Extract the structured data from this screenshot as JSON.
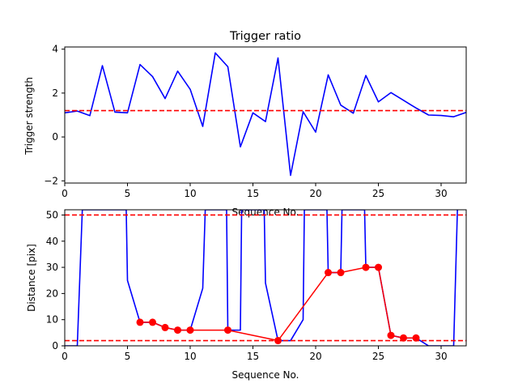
{
  "chart_data": [
    {
      "type": "line",
      "title": "Trigger ratio",
      "xlabel": "Sequence No.",
      "ylabel": "Trigger strength",
      "xlim": [
        0,
        32
      ],
      "ylim": [
        -2.1,
        4.1
      ],
      "xticks": [
        0,
        5,
        10,
        15,
        20,
        25,
        30
      ],
      "yticks": [
        -2,
        0,
        2,
        4
      ],
      "grid": false,
      "series": [
        {
          "color": "#0000ff",
          "x": [
            0,
            1,
            2,
            3,
            4,
            5,
            6,
            7,
            8,
            9,
            10,
            11,
            12,
            13,
            14,
            15,
            16,
            17,
            18,
            19,
            20,
            21,
            22,
            23,
            24,
            25,
            26,
            27,
            28,
            29,
            30,
            31,
            32
          ],
          "y": [
            1.1,
            1.18,
            0.97,
            3.25,
            1.13,
            1.1,
            3.3,
            2.75,
            1.75,
            3.0,
            2.17,
            0.48,
            3.83,
            3.2,
            -0.45,
            1.1,
            0.7,
            3.6,
            -1.75,
            1.15,
            0.22,
            2.83,
            1.45,
            1.08,
            2.8,
            1.6,
            2.02,
            1.67,
            1.32,
            1.0,
            0.98,
            0.92,
            1.12
          ]
        }
      ],
      "hlines": [
        {
          "y": 1.2,
          "color": "#ff0000",
          "style": "dashed"
        }
      ]
    },
    {
      "type": "line",
      "title": "",
      "xlabel": "Sequence No.",
      "ylabel": "Distance [pix]",
      "xlim": [
        0,
        32
      ],
      "ylim": [
        0,
        52
      ],
      "xticks": [
        0,
        5,
        10,
        15,
        20,
        25,
        30
      ],
      "yticks": [
        0,
        10,
        20,
        30,
        40,
        50
      ],
      "grid": false,
      "series": [
        {
          "color": "#0000ff",
          "x": [
            0,
            1,
            1.4,
            4.9,
            5,
            6,
            7,
            8,
            9,
            10,
            11,
            11.2,
            12.9,
            13,
            14,
            14.1,
            15.9,
            16,
            17,
            18,
            19,
            19.1,
            20.9,
            21,
            22,
            22.1,
            23.9,
            24,
            25,
            26,
            27,
            28,
            29,
            30,
            31,
            31.3
          ],
          "y": [
            0,
            0,
            52,
            52,
            25,
            9,
            9,
            7,
            6,
            6,
            22,
            52,
            52,
            6,
            6,
            52,
            52,
            24,
            2,
            2,
            10,
            52,
            52,
            28,
            28,
            52,
            52,
            30,
            30,
            4,
            3,
            3,
            0,
            0,
            0,
            52
          ]
        },
        {
          "color": "#ff0000",
          "marker": "circle",
          "x": [
            6,
            7,
            8,
            9,
            10,
            13,
            17,
            21,
            22,
            24,
            25,
            26,
            27,
            28
          ],
          "y": [
            9,
            9,
            7,
            6,
            6,
            6,
            2,
            28,
            28,
            30,
            30,
            4,
            3,
            3
          ]
        }
      ],
      "hlines": [
        {
          "y": 50,
          "color": "#ff0000",
          "style": "dashed"
        },
        {
          "y": 2,
          "color": "#ff0000",
          "style": "dashed"
        }
      ]
    }
  ]
}
